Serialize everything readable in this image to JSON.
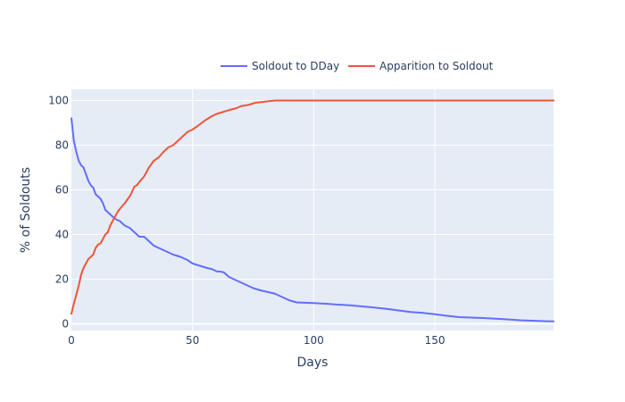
{
  "chart_data": {
    "type": "line",
    "xlabel": "Days",
    "ylabel": "% of Soldouts",
    "xlim": [
      0,
      199
    ],
    "ylim": [
      -3,
      105
    ],
    "x_ticks": [
      0,
      50,
      100,
      150
    ],
    "y_ticks": [
      0,
      20,
      40,
      60,
      80,
      100
    ],
    "grid": true,
    "legend_position": "top",
    "background_color": "#e5ecf6",
    "series": [
      {
        "name": "Soldout to DDay",
        "color": "#636efa",
        "x": [
          0,
          1,
          2,
          3,
          4,
          5,
          6,
          7,
          8,
          9,
          10,
          11,
          12,
          13,
          14,
          15,
          16,
          18,
          20,
          22,
          24,
          26,
          28,
          30,
          32,
          34,
          36,
          38,
          40,
          42,
          45,
          48,
          50,
          53,
          56,
          58,
          60,
          62,
          63,
          65,
          68,
          70,
          72,
          75,
          78,
          80,
          84,
          86,
          88,
          90,
          93,
          95,
          100,
          105,
          110,
          115,
          120,
          125,
          130,
          135,
          140,
          145,
          150,
          155,
          160,
          165,
          170,
          175,
          180,
          185,
          190,
          195,
          199
        ],
        "y": [
          92,
          82,
          77,
          73,
          71,
          70,
          67,
          64,
          62,
          61,
          58,
          57,
          56,
          54,
          51,
          50,
          49,
          47,
          46,
          44,
          43,
          41,
          39,
          39,
          37,
          35,
          34,
          33,
          32,
          31,
          30,
          28.5,
          27,
          26,
          25,
          24.5,
          23.5,
          23.3,
          23,
          21,
          19.5,
          18.5,
          17.5,
          16,
          15,
          14.5,
          13.5,
          12.5,
          11.5,
          10.5,
          9.6,
          9.5,
          9.3,
          9,
          8.6,
          8.3,
          7.8,
          7.3,
          6.7,
          6.0,
          5.3,
          4.9,
          4.3,
          3.6,
          3.0,
          2.8,
          2.6,
          2.3,
          2.0,
          1.6,
          1.4,
          1.2,
          1.1
        ]
      },
      {
        "name": "Apparition to Soldout",
        "color": "#ef553b",
        "x": [
          0,
          1,
          2,
          3,
          4,
          5,
          6,
          7,
          8,
          9,
          10,
          11,
          12,
          13,
          14,
          15,
          16,
          17,
          18,
          19,
          20,
          22,
          24,
          25,
          26,
          27,
          28,
          30,
          32,
          34,
          36,
          38,
          40,
          42,
          45,
          48,
          50,
          52,
          55,
          58,
          60,
          63,
          66,
          68,
          70,
          73,
          76,
          80,
          84,
          90,
          100,
          150,
          199
        ],
        "y": [
          4.5,
          9,
          13,
          17,
          22,
          25,
          27,
          29,
          30,
          31,
          34,
          35.5,
          36,
          38,
          40,
          41,
          44,
          46,
          48,
          50,
          51.5,
          54,
          57,
          59,
          61.5,
          62,
          63.5,
          66,
          70,
          73,
          74.5,
          77,
          79,
          80,
          83,
          86,
          87,
          88.5,
          91,
          93,
          94,
          95,
          96,
          96.5,
          97.5,
          98,
          99,
          99.5,
          100,
          100,
          100,
          100,
          100
        ]
      }
    ]
  }
}
